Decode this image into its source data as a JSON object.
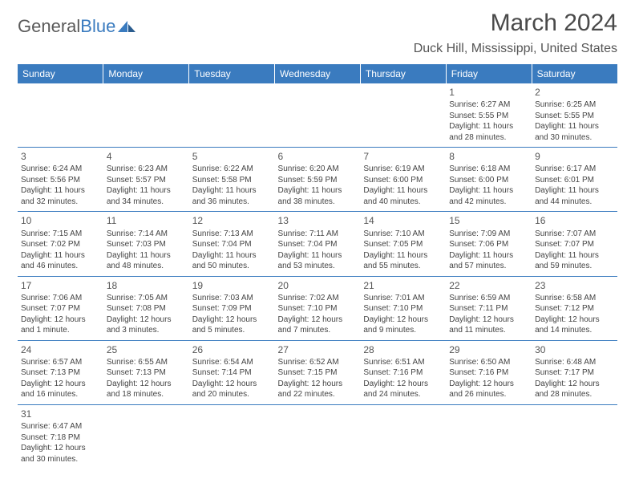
{
  "logo": {
    "text1": "General",
    "text2": "Blue"
  },
  "title": "March 2024",
  "location": "Duck Hill, Mississippi, United States",
  "header_bg": "#3a7bbf",
  "dayNames": [
    "Sunday",
    "Monday",
    "Tuesday",
    "Wednesday",
    "Thursday",
    "Friday",
    "Saturday"
  ],
  "weeks": [
    [
      null,
      null,
      null,
      null,
      null,
      {
        "n": "1",
        "sr": "6:27 AM",
        "ss": "5:55 PM",
        "dl": "11 hours and 28 minutes."
      },
      {
        "n": "2",
        "sr": "6:25 AM",
        "ss": "5:55 PM",
        "dl": "11 hours and 30 minutes."
      }
    ],
    [
      {
        "n": "3",
        "sr": "6:24 AM",
        "ss": "5:56 PM",
        "dl": "11 hours and 32 minutes."
      },
      {
        "n": "4",
        "sr": "6:23 AM",
        "ss": "5:57 PM",
        "dl": "11 hours and 34 minutes."
      },
      {
        "n": "5",
        "sr": "6:22 AM",
        "ss": "5:58 PM",
        "dl": "11 hours and 36 minutes."
      },
      {
        "n": "6",
        "sr": "6:20 AM",
        "ss": "5:59 PM",
        "dl": "11 hours and 38 minutes."
      },
      {
        "n": "7",
        "sr": "6:19 AM",
        "ss": "6:00 PM",
        "dl": "11 hours and 40 minutes."
      },
      {
        "n": "8",
        "sr": "6:18 AM",
        "ss": "6:00 PM",
        "dl": "11 hours and 42 minutes."
      },
      {
        "n": "9",
        "sr": "6:17 AM",
        "ss": "6:01 PM",
        "dl": "11 hours and 44 minutes."
      }
    ],
    [
      {
        "n": "10",
        "sr": "7:15 AM",
        "ss": "7:02 PM",
        "dl": "11 hours and 46 minutes."
      },
      {
        "n": "11",
        "sr": "7:14 AM",
        "ss": "7:03 PM",
        "dl": "11 hours and 48 minutes."
      },
      {
        "n": "12",
        "sr": "7:13 AM",
        "ss": "7:04 PM",
        "dl": "11 hours and 50 minutes."
      },
      {
        "n": "13",
        "sr": "7:11 AM",
        "ss": "7:04 PM",
        "dl": "11 hours and 53 minutes."
      },
      {
        "n": "14",
        "sr": "7:10 AM",
        "ss": "7:05 PM",
        "dl": "11 hours and 55 minutes."
      },
      {
        "n": "15",
        "sr": "7:09 AM",
        "ss": "7:06 PM",
        "dl": "11 hours and 57 minutes."
      },
      {
        "n": "16",
        "sr": "7:07 AM",
        "ss": "7:07 PM",
        "dl": "11 hours and 59 minutes."
      }
    ],
    [
      {
        "n": "17",
        "sr": "7:06 AM",
        "ss": "7:07 PM",
        "dl": "12 hours and 1 minute."
      },
      {
        "n": "18",
        "sr": "7:05 AM",
        "ss": "7:08 PM",
        "dl": "12 hours and 3 minutes."
      },
      {
        "n": "19",
        "sr": "7:03 AM",
        "ss": "7:09 PM",
        "dl": "12 hours and 5 minutes."
      },
      {
        "n": "20",
        "sr": "7:02 AM",
        "ss": "7:10 PM",
        "dl": "12 hours and 7 minutes."
      },
      {
        "n": "21",
        "sr": "7:01 AM",
        "ss": "7:10 PM",
        "dl": "12 hours and 9 minutes."
      },
      {
        "n": "22",
        "sr": "6:59 AM",
        "ss": "7:11 PM",
        "dl": "12 hours and 11 minutes."
      },
      {
        "n": "23",
        "sr": "6:58 AM",
        "ss": "7:12 PM",
        "dl": "12 hours and 14 minutes."
      }
    ],
    [
      {
        "n": "24",
        "sr": "6:57 AM",
        "ss": "7:13 PM",
        "dl": "12 hours and 16 minutes."
      },
      {
        "n": "25",
        "sr": "6:55 AM",
        "ss": "7:13 PM",
        "dl": "12 hours and 18 minutes."
      },
      {
        "n": "26",
        "sr": "6:54 AM",
        "ss": "7:14 PM",
        "dl": "12 hours and 20 minutes."
      },
      {
        "n": "27",
        "sr": "6:52 AM",
        "ss": "7:15 PM",
        "dl": "12 hours and 22 minutes."
      },
      {
        "n": "28",
        "sr": "6:51 AM",
        "ss": "7:16 PM",
        "dl": "12 hours and 24 minutes."
      },
      {
        "n": "29",
        "sr": "6:50 AM",
        "ss": "7:16 PM",
        "dl": "12 hours and 26 minutes."
      },
      {
        "n": "30",
        "sr": "6:48 AM",
        "ss": "7:17 PM",
        "dl": "12 hours and 28 minutes."
      }
    ],
    [
      {
        "n": "31",
        "sr": "6:47 AM",
        "ss": "7:18 PM",
        "dl": "12 hours and 30 minutes."
      },
      null,
      null,
      null,
      null,
      null,
      null
    ]
  ],
  "labels": {
    "sunrise": "Sunrise:",
    "sunset": "Sunset:",
    "daylight": "Daylight:"
  }
}
